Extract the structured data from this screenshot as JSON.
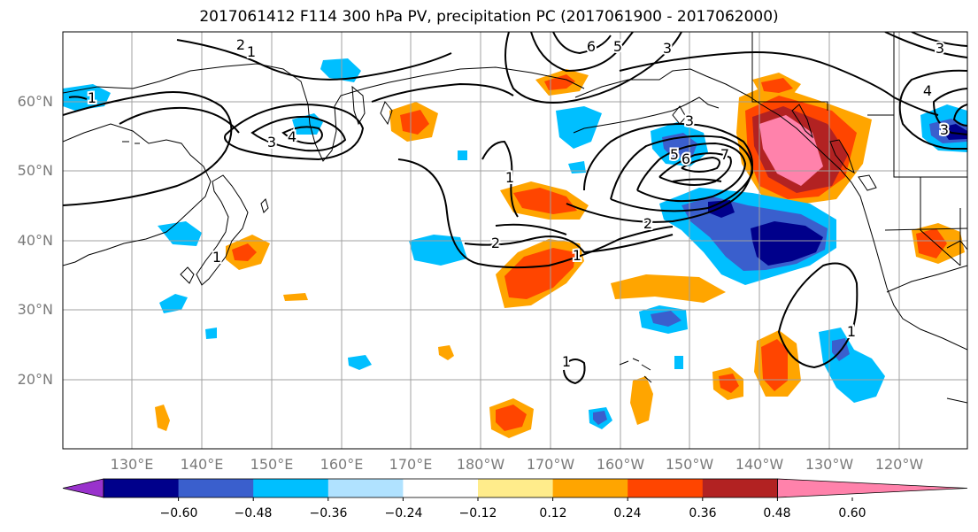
{
  "title": "2017061412 F114 300 hPa PV, precipitation PC (2017061900 - 2017062000)",
  "lat_labels": [
    "60°N",
    "50°N",
    "40°N",
    "30°N",
    "20°N"
  ],
  "lon_labels": [
    "130°E",
    "140°E",
    "150°E",
    "160°E",
    "170°E",
    "180°W",
    "170°W",
    "160°W",
    "150°W",
    "140°W",
    "130°W",
    "120°W"
  ],
  "colorbar": {
    "colors": [
      "#9932cc",
      "#00008b",
      "#3a5fcd",
      "#00bfff",
      "#b0e2ff",
      "#ffffff",
      "#ffec8b",
      "#ffa500",
      "#ff4500",
      "#b22222",
      "#ff82ab"
    ],
    "tick_labels": [
      "−0.60",
      "−0.48",
      "−0.36",
      "−0.24",
      "−0.12",
      "0.12",
      "0.24",
      "0.36",
      "0.48",
      "0.60"
    ]
  },
  "contour_labels": [
    "1",
    "2",
    "3",
    "4",
    "5",
    "6",
    "7"
  ],
  "colors": {
    "land_outline": "#000000",
    "grid": "#a0a0a0",
    "contour": "#000000"
  }
}
